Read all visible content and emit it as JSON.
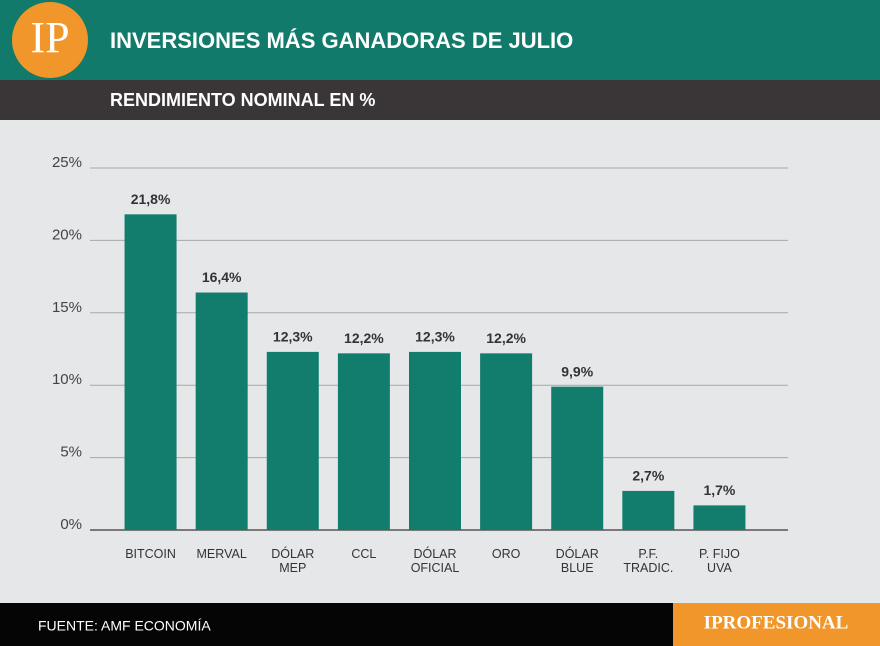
{
  "logo": "IP",
  "brand": "IPROFESIONAL",
  "source": "FUENTE: AMF ECONOMÍA",
  "chart_data": {
    "type": "bar",
    "title": "INVERSIONES MÁS GANADORAS DE JULIO",
    "subtitle": "RENDIMIENTO NOMINAL EN %",
    "categories": [
      "BITCOIN",
      "MERVAL",
      "DÓLAR\nMEP",
      "CCL",
      "DÓLAR\nOFICIAL",
      "ORO",
      "DÓLAR\nBLUE",
      "P.F.\nTRADIC.",
      "P. FIJO\nUVA"
    ],
    "values": [
      21.8,
      16.4,
      12.3,
      12.2,
      12.3,
      12.2,
      9.9,
      2.7,
      1.7
    ],
    "value_labels": [
      "21,8%",
      "16,4%",
      "12,3%",
      "12,2%",
      "12,3%",
      "12,2%",
      "9,9%",
      "2,7%",
      "1,7%"
    ],
    "color": "#127d6c",
    "ylim": [
      0,
      25
    ],
    "yticks": [
      {
        "value": 0,
        "label": "0%"
      },
      {
        "value": 5,
        "label": "5%"
      },
      {
        "value": 10,
        "label": "10%"
      },
      {
        "value": 15,
        "label": "15%"
      },
      {
        "value": 20,
        "label": "20%"
      },
      {
        "value": 25,
        "label": "25%"
      }
    ],
    "grid": true
  }
}
